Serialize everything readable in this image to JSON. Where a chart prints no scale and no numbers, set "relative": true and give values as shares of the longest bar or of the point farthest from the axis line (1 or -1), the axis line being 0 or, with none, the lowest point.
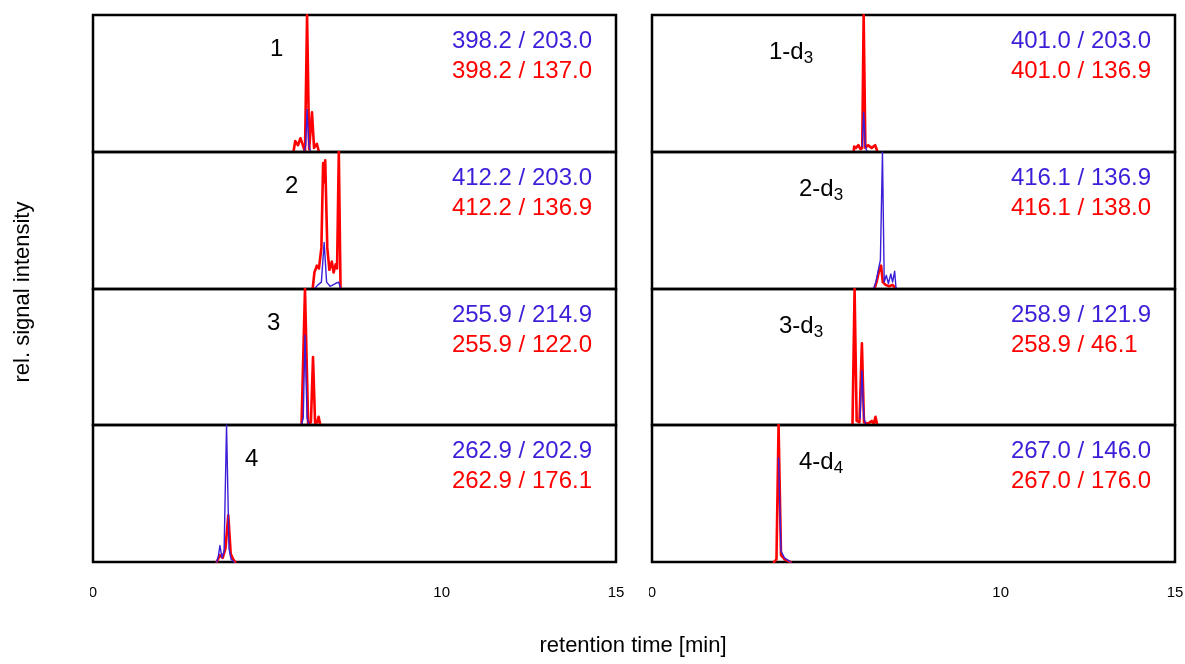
{
  "chart_data": [
    {
      "type": "line",
      "title": "1",
      "ylabel": "rel. signal intensity",
      "relative": true,
      "xlim": [
        0,
        15
      ],
      "xticks": [
        0,
        10,
        15
      ],
      "tick_labels": false,
      "legend": "top right",
      "series": [
        {
          "name": "398.2 / 203.0",
          "color": "#3b1fd8",
          "x": [
            6.05,
            6.1,
            6.14,
            6.19,
            6.24
          ],
          "values": [
            0,
            0.05,
            0.31,
            0.05,
            0
          ]
        },
        {
          "name": "398.2 / 137.0",
          "color": "#ff0000",
          "x": [
            5.75,
            5.8,
            5.88,
            5.95,
            6.02,
            6.08,
            6.14,
            6.2,
            6.28,
            6.34,
            6.42,
            6.48
          ],
          "values": [
            0,
            0.08,
            0.05,
            0.1,
            0.05,
            0,
            1,
            0.02,
            0.29,
            0.03,
            0.06,
            0
          ]
        }
      ]
    },
    {
      "type": "line",
      "title": "1-d$_{3}$",
      "relative": true,
      "xlim": [
        0,
        15
      ],
      "xticks": [
        0,
        10,
        15
      ],
      "tick_labels": false,
      "legend": "top right",
      "series": [
        {
          "name": "401.0 / 203.0",
          "color": "#3b1fd8",
          "x": [
            6.03,
            6.07,
            6.12,
            6.17
          ],
          "values": [
            0.04,
            0.29,
            0.04,
            0
          ]
        },
        {
          "name": "401.0 / 136.9",
          "color": "#ff0000",
          "x": [
            5.78,
            5.8,
            5.85,
            5.92,
            5.98,
            6.03,
            6.07,
            6.12,
            6.2,
            6.3,
            6.4,
            6.47
          ],
          "values": [
            0,
            0.04,
            0.03,
            0.05,
            0.02,
            0.03,
            1,
            0.03,
            0.05,
            0.03,
            0.05,
            0
          ]
        }
      ]
    },
    {
      "type": "line",
      "title": "2",
      "relative": true,
      "xlim": [
        0,
        15
      ],
      "xticks": [
        0,
        10,
        15
      ],
      "tick_labels": false,
      "legend": "top right",
      "series": [
        {
          "name": "412.2 / 203.0",
          "color": "#3b1fd8",
          "x": [
            6.35,
            6.45,
            6.55,
            6.63,
            6.7,
            6.8,
            6.95,
            7.05,
            7.1
          ],
          "values": [
            0,
            0.03,
            0.05,
            0.34,
            0.05,
            0.02,
            0.04,
            0.05,
            0
          ]
        },
        {
          "name": "412.2 / 136.9",
          "color": "#ff0000",
          "x": [
            6.3,
            6.35,
            6.42,
            6.48,
            6.55,
            6.6,
            6.63,
            6.66,
            6.72,
            6.78,
            6.85,
            6.9,
            6.96,
            7.0,
            7.05,
            7.1
          ],
          "values": [
            0,
            0.12,
            0.17,
            0.15,
            0.3,
            0.92,
            0.78,
            0.94,
            0.3,
            0.14,
            0.2,
            0.12,
            0.18,
            0.15,
            1,
            0
          ]
        }
      ]
    },
    {
      "type": "line",
      "title": "2-d$_{3}$",
      "relative": true,
      "xlim": [
        0,
        15
      ],
      "xticks": [
        0,
        10,
        15
      ],
      "tick_labels": false,
      "legend": "top right",
      "series": [
        {
          "name": "416.1 / 136.9",
          "color": "#3b1fd8",
          "x": [
            6.35,
            6.42,
            6.5,
            6.55,
            6.61,
            6.66,
            6.72,
            6.78,
            6.85,
            6.9,
            6.96,
            7.0
          ],
          "values": [
            0,
            0.05,
            0.15,
            0.21,
            1,
            0.05,
            0.1,
            0.04,
            0.11,
            0.05,
            0.13,
            0
          ]
        },
        {
          "name": "416.1 / 138.0",
          "color": "#ff0000",
          "x": [
            6.38,
            6.45,
            6.52,
            6.57,
            6.62,
            6.7,
            6.8,
            6.9,
            7.0
          ],
          "values": [
            0,
            0.06,
            0.14,
            0.17,
            0.05,
            0.03,
            0.02,
            0.03,
            0
          ]
        }
      ]
    },
    {
      "type": "line",
      "title": "3",
      "relative": true,
      "xlim": [
        0,
        15
      ],
      "xticks": [
        0,
        10,
        15
      ],
      "tick_labels": false,
      "legend": "top right",
      "series": [
        {
          "name": "255.9 / 214.9",
          "color": "#3b1fd8",
          "x": [
            5.98,
            6.03,
            6.08,
            6.14,
            6.2
          ],
          "values": [
            0,
            0.05,
            0.66,
            0.05,
            0
          ]
        },
        {
          "name": "255.9 / 122.0",
          "color": "#ff0000",
          "x": [
            5.98,
            6.08,
            6.17,
            6.25,
            6.31,
            6.37,
            6.43,
            6.47,
            6.52
          ],
          "values": [
            0,
            1,
            0.01,
            0.02,
            0.5,
            0.01,
            0.02,
            0.06,
            0
          ]
        }
      ]
    },
    {
      "type": "line",
      "title": "3-d$_{3}$",
      "relative": true,
      "xlim": [
        0,
        15
      ],
      "xticks": [
        0,
        10,
        15
      ],
      "tick_labels": false,
      "legend": "top right",
      "series": [
        {
          "name": "258.9 / 121.9",
          "color": "#3b1fd8",
          "x": [
            5.97,
            6.02,
            6.08,
            6.14
          ],
          "values": [
            0.05,
            0.4,
            0.05,
            0
          ]
        },
        {
          "name": "258.9 / 46.1",
          "color": "#ff0000",
          "x": [
            5.75,
            5.81,
            5.87,
            5.95,
            6.02,
            6.08,
            6.2,
            6.3,
            6.36,
            6.41,
            6.46
          ],
          "values": [
            0,
            1,
            0.03,
            0.02,
            0.6,
            0.02,
            0.01,
            0.03,
            0.01,
            0.06,
            0
          ]
        }
      ]
    },
    {
      "type": "line",
      "title": "4",
      "xlabel": "retention time [min]",
      "relative": true,
      "xlim": [
        0,
        15
      ],
      "xticks": [
        0,
        10,
        15
      ],
      "tick_labels": "x",
      "legend": "top right",
      "series": [
        {
          "name": "262.9 / 202.9",
          "color": "#3b1fd8",
          "x": [
            3.55,
            3.6,
            3.64,
            3.7,
            3.76,
            3.83,
            3.9,
            3.96,
            4.05
          ],
          "values": [
            0,
            0.05,
            0.12,
            0.03,
            0.08,
            1,
            0.1,
            0.02,
            0
          ]
        },
        {
          "name": "262.9 / 176.1",
          "color": "#ff0000",
          "x": [
            3.55,
            3.64,
            3.72,
            3.8,
            3.88,
            3.95,
            4.02,
            4.08
          ],
          "values": [
            0,
            0.05,
            0.03,
            0.1,
            0.34,
            0.06,
            0.02,
            0
          ]
        }
      ]
    },
    {
      "type": "line",
      "title": "4-d$_{4}$",
      "relative": true,
      "xlim": [
        0,
        15
      ],
      "xticks": [
        0,
        10,
        15
      ],
      "tick_labels": "x",
      "legend": "top right",
      "series": [
        {
          "name": "267.0 / 146.0",
          "color": "#3b1fd8",
          "x": [
            3.63,
            3.7,
            3.8,
            3.97
          ],
          "values": [
            0.76,
            0.08,
            0.03,
            0
          ]
        },
        {
          "name": "267.0 / 176.0",
          "color": "#ff0000",
          "x": [
            3.5,
            3.57,
            3.63,
            3.7,
            3.8,
            3.97
          ],
          "values": [
            0,
            0.02,
            1,
            0.05,
            0.02,
            0
          ]
        }
      ]
    }
  ]
}
